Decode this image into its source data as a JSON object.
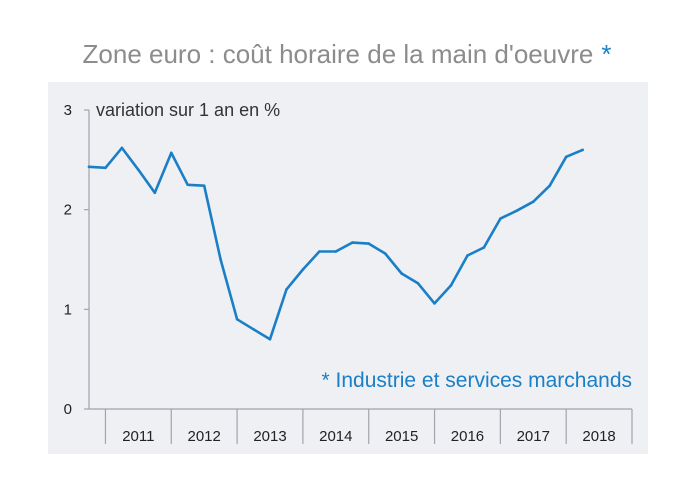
{
  "header": {
    "title": "Zone euro : coût horaire de la main d'oeuvre",
    "title_star": "*"
  },
  "note": "* Industrie et services marchands",
  "colors": {
    "line": "#1a7fc6",
    "plot_background": "#eef0f4",
    "axis": "#a0a4ab",
    "title": "#8c8c8c"
  },
  "chart_data": {
    "type": "line",
    "title": "Zone euro : coût horaire de la main d'oeuvre *",
    "ylabel": "variation sur 1 an en %",
    "xlabel": "",
    "ylim": [
      0,
      3
    ],
    "yticks": [
      0,
      1,
      2,
      3
    ],
    "xlim": [
      2010.75,
      2019.0
    ],
    "categories": [
      "2011",
      "2012",
      "2013",
      "2014",
      "2015",
      "2016",
      "2017",
      "2018"
    ],
    "grid": false,
    "legend": "none",
    "series": [
      {
        "x": [
          2010.75,
          2011.0,
          2011.25,
          2011.5,
          2011.75,
          2012.0,
          2012.25,
          2012.5,
          2012.75,
          2013.0,
          2013.25,
          2013.5,
          2013.75,
          2014.0,
          2014.25,
          2014.5,
          2014.75,
          2015.0,
          2015.25,
          2015.5,
          2015.75,
          2016.0,
          2016.25,
          2016.5,
          2016.75,
          2017.0,
          2017.25,
          2017.5,
          2017.75,
          2018.0,
          2018.25
        ],
        "values": [
          2.43,
          2.42,
          2.62,
          2.4,
          2.17,
          2.57,
          2.25,
          2.24,
          1.5,
          0.9,
          0.8,
          0.7,
          1.2,
          1.4,
          1.58,
          1.58,
          1.67,
          1.66,
          1.56,
          1.36,
          1.26,
          1.06,
          1.24,
          1.54,
          1.62,
          1.91,
          1.99,
          2.08,
          2.24,
          2.53,
          2.6
        ]
      }
    ]
  }
}
